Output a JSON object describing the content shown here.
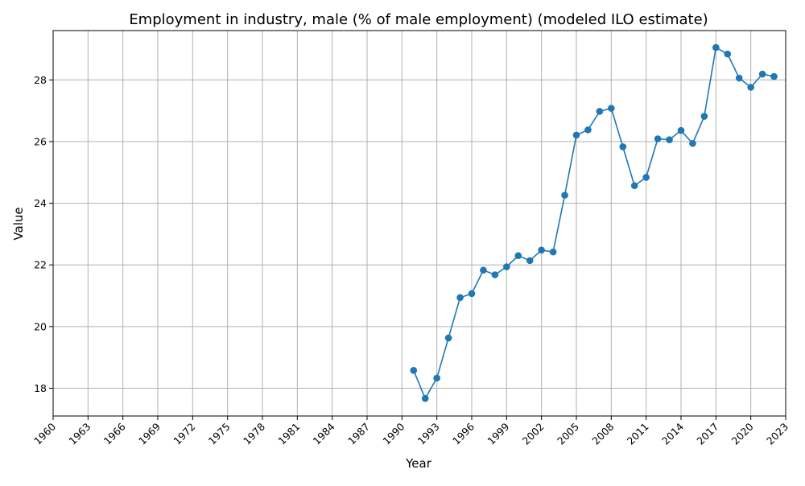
{
  "chart_data": {
    "type": "line",
    "title": "Employment in industry, male (% of male employment) (modeled ILO estimate)",
    "xlabel": "Year",
    "ylabel": "Value",
    "xlim": [
      1960,
      2023
    ],
    "ylim": [
      17.1,
      29.6
    ],
    "grid": true,
    "x_ticks": [
      "1960",
      "1963",
      "1966",
      "1969",
      "1972",
      "1975",
      "1978",
      "1981",
      "1984",
      "1987",
      "1990",
      "1993",
      "1996",
      "1999",
      "2002",
      "2005",
      "2008",
      "2011",
      "2014",
      "2017",
      "2020",
      "2023"
    ],
    "y_ticks": [
      "18",
      "20",
      "22",
      "24",
      "26",
      "28"
    ],
    "color": "#1f77b4",
    "marker": "circle",
    "series": [
      {
        "x": [
          1991,
          1992,
          1993,
          1994,
          1995,
          1996,
          1997,
          1998,
          1999,
          2000,
          2001,
          2002,
          2003,
          2004,
          2005,
          2006,
          2007,
          2008,
          2009,
          2010,
          2011,
          2012,
          2013,
          2014,
          2015,
          2016,
          2017,
          2018,
          2019,
          2020,
          2021,
          2022
        ],
        "values": [
          18.58,
          17.67,
          18.33,
          19.63,
          20.94,
          21.07,
          21.83,
          21.68,
          21.94,
          22.3,
          22.14,
          22.48,
          22.42,
          24.26,
          26.21,
          26.38,
          26.98,
          27.08,
          25.83,
          24.57,
          24.84,
          26.09,
          26.06,
          26.36,
          25.94,
          26.82,
          29.05,
          28.84,
          28.06,
          27.76,
          28.19,
          28.11
        ]
      }
    ]
  }
}
